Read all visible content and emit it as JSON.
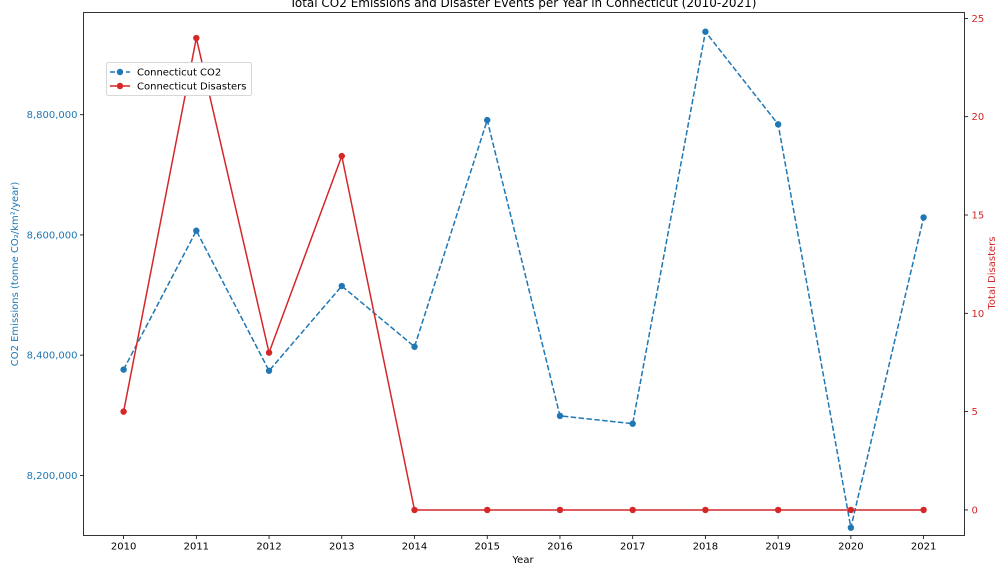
{
  "chart_data": {
    "type": "line",
    "title": "Total CO2 Emissions and Disaster Events per Year in Connecticut (2010-2021)",
    "xlabel": "Year",
    "ylabel_left": "CO2 Emissions (tonne CO₂/km²/year)",
    "ylabel_right": "Total Disasters",
    "categories": [
      "2010",
      "2011",
      "2012",
      "2013",
      "2014",
      "2015",
      "2016",
      "2017",
      "2018",
      "2019",
      "2020",
      "2021"
    ],
    "ylim_left": [
      8100000,
      8970000
    ],
    "ylim_right": [
      -1.3,
      25.3
    ],
    "yticks_left": [
      8200000,
      8400000,
      8600000,
      8800000
    ],
    "yticks_left_labels": [
      "8,200,000",
      "8,400,000",
      "8,600,000",
      "8,800,000"
    ],
    "yticks_right": [
      0,
      5,
      10,
      15,
      20,
      25
    ],
    "yticks_right_labels": [
      "0",
      "5",
      "10",
      "15",
      "20",
      "25"
    ],
    "grid": false,
    "legend_position": "top-left",
    "series": [
      {
        "name": "Connecticut CO2",
        "axis": "left",
        "style": "dashed",
        "color": "#1f77b4",
        "values": [
          8376000,
          8607000,
          8374000,
          8515000,
          8414000,
          8791000,
          8299000,
          8286000,
          8938000,
          8784000,
          8113000,
          8629000
        ]
      },
      {
        "name": "Connecticut Disasters",
        "axis": "right",
        "style": "solid",
        "color": "#d62728",
        "values": [
          5,
          24,
          8,
          18,
          0,
          0,
          0,
          0,
          0,
          0,
          0,
          0
        ]
      }
    ]
  }
}
